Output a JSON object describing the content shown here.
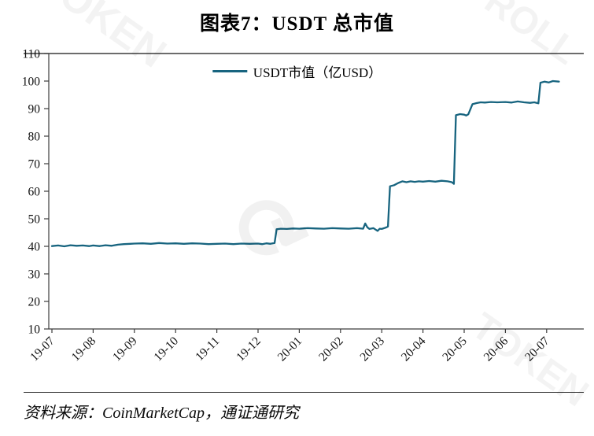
{
  "page": {
    "title": "图表7：USDT 总市值",
    "source": "资料来源：CoinMarketCap，通证通研究",
    "watermark_1": "TOKEN",
    "watermark_2": "⟳",
    "watermark_3": "ROLL",
    "watermark_4": "TOKEN"
  },
  "chart_data": {
    "type": "line",
    "title": "图表7：USDT 总市值",
    "legend": [
      "USDT市值（亿USD）"
    ],
    "legend_position": "top-center",
    "xlabel": "",
    "ylabel": "",
    "ylim": [
      10,
      110
    ],
    "ytick_step": 10,
    "grid": false,
    "line_color": "#17647F",
    "axis_color": "#3c3c3c",
    "x_tick_labels": [
      "19-07",
      "19-08",
      "19-09",
      "19-10",
      "19-11",
      "19-12",
      "20-01",
      "20-02",
      "20-03",
      "20-04",
      "20-05",
      "20-06",
      "20-07"
    ],
    "x_unit": "months-from-19-07",
    "series": [
      {
        "name": "USDT市值（亿USD）",
        "points": [
          [
            0.0,
            40.1
          ],
          [
            0.15,
            40.3
          ],
          [
            0.3,
            40.0
          ],
          [
            0.45,
            40.4
          ],
          [
            0.6,
            40.2
          ],
          [
            0.75,
            40.3
          ],
          [
            0.9,
            40.1
          ],
          [
            1.0,
            40.3
          ],
          [
            1.15,
            40.1
          ],
          [
            1.3,
            40.4
          ],
          [
            1.45,
            40.2
          ],
          [
            1.6,
            40.6
          ],
          [
            1.75,
            40.8
          ],
          [
            1.9,
            40.9
          ],
          [
            2.0,
            41.0
          ],
          [
            2.2,
            41.1
          ],
          [
            2.4,
            40.9
          ],
          [
            2.6,
            41.2
          ],
          [
            2.8,
            41.0
          ],
          [
            3.0,
            41.1
          ],
          [
            3.2,
            40.9
          ],
          [
            3.4,
            41.1
          ],
          [
            3.6,
            41.0
          ],
          [
            3.8,
            40.8
          ],
          [
            4.0,
            40.9
          ],
          [
            4.2,
            41.0
          ],
          [
            4.4,
            40.8
          ],
          [
            4.6,
            41.0
          ],
          [
            4.8,
            40.9
          ],
          [
            5.0,
            41.0
          ],
          [
            5.1,
            40.8
          ],
          [
            5.2,
            41.1
          ],
          [
            5.3,
            40.9
          ],
          [
            5.4,
            41.2
          ],
          [
            5.45,
            46.2
          ],
          [
            5.55,
            46.4
          ],
          [
            5.7,
            46.3
          ],
          [
            5.85,
            46.5
          ],
          [
            6.0,
            46.4
          ],
          [
            6.2,
            46.6
          ],
          [
            6.4,
            46.5
          ],
          [
            6.6,
            46.4
          ],
          [
            6.8,
            46.6
          ],
          [
            7.0,
            46.5
          ],
          [
            7.2,
            46.4
          ],
          [
            7.4,
            46.6
          ],
          [
            7.55,
            46.4
          ],
          [
            7.6,
            48.3
          ],
          [
            7.65,
            46.9
          ],
          [
            7.7,
            46.3
          ],
          [
            7.8,
            46.6
          ],
          [
            7.9,
            45.6
          ],
          [
            7.95,
            46.4
          ],
          [
            8.0,
            46.3
          ],
          [
            8.1,
            46.8
          ],
          [
            8.15,
            47.2
          ],
          [
            8.2,
            61.8
          ],
          [
            8.3,
            62.2
          ],
          [
            8.4,
            63.0
          ],
          [
            8.5,
            63.6
          ],
          [
            8.6,
            63.3
          ],
          [
            8.7,
            63.6
          ],
          [
            8.8,
            63.4
          ],
          [
            8.9,
            63.6
          ],
          [
            9.0,
            63.5
          ],
          [
            9.15,
            63.7
          ],
          [
            9.3,
            63.5
          ],
          [
            9.45,
            63.8
          ],
          [
            9.6,
            63.6
          ],
          [
            9.7,
            63.3
          ],
          [
            9.75,
            62.7
          ],
          [
            9.8,
            87.6
          ],
          [
            9.9,
            88.0
          ],
          [
            10.0,
            87.8
          ],
          [
            10.05,
            87.5
          ],
          [
            10.1,
            87.9
          ],
          [
            10.2,
            91.6
          ],
          [
            10.3,
            92.0
          ],
          [
            10.4,
            92.3
          ],
          [
            10.5,
            92.2
          ],
          [
            10.65,
            92.4
          ],
          [
            10.8,
            92.3
          ],
          [
            11.0,
            92.4
          ],
          [
            11.15,
            92.2
          ],
          [
            11.3,
            92.6
          ],
          [
            11.45,
            92.3
          ],
          [
            11.6,
            92.1
          ],
          [
            11.7,
            92.3
          ],
          [
            11.8,
            91.9
          ],
          [
            11.85,
            99.4
          ],
          [
            11.95,
            99.8
          ],
          [
            12.05,
            99.5
          ],
          [
            12.15,
            100.0
          ],
          [
            12.3,
            99.8
          ]
        ]
      }
    ]
  }
}
